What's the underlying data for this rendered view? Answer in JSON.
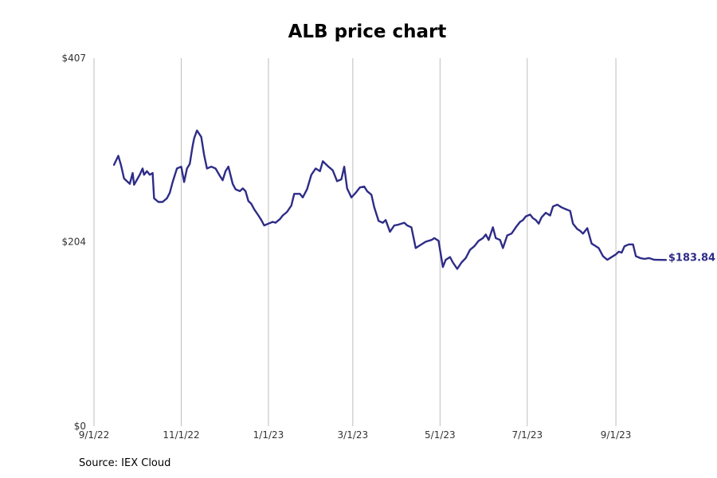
{
  "chart_data": {
    "type": "line",
    "title": "ALB price chart",
    "source": "Source: IEX Cloud",
    "xlabel": "",
    "ylabel": "",
    "x_range": [
      "2022-09-01",
      "2023-10-25"
    ],
    "ylim": [
      0,
      407
    ],
    "y_ticks": [
      {
        "value": 0,
        "label": "$0"
      },
      {
        "value": 204,
        "label": "$204"
      },
      {
        "value": 407,
        "label": "$407"
      }
    ],
    "x_ticks": [
      {
        "value": "2022-09-01",
        "label": "9/1/22"
      },
      {
        "value": "2022-11-01",
        "label": "11/1/22"
      },
      {
        "value": "2023-01-01",
        "label": "1/1/23"
      },
      {
        "value": "2023-03-01",
        "label": "3/1/23"
      },
      {
        "value": "2023-05-01",
        "label": "5/1/23"
      },
      {
        "value": "2023-07-01",
        "label": "7/1/23"
      },
      {
        "value": "2023-09-01",
        "label": "9/1/23"
      }
    ],
    "grid": "vertical",
    "color": "#2e2c87",
    "last_value_label": "$183.84",
    "series": [
      {
        "points": [
          [
            "2022-09-15",
            289
          ],
          [
            "2022-09-18",
            299
          ],
          [
            "2022-09-20",
            288
          ],
          [
            "2022-09-22",
            274
          ],
          [
            "2022-09-26",
            268
          ],
          [
            "2022-09-28",
            280
          ],
          [
            "2022-09-29",
            267
          ],
          [
            "2022-10-03",
            278
          ],
          [
            "2022-10-05",
            285
          ],
          [
            "2022-10-06",
            278
          ],
          [
            "2022-10-08",
            282
          ],
          [
            "2022-10-10",
            278
          ],
          [
            "2022-10-12",
            280
          ],
          [
            "2022-10-13",
            252
          ],
          [
            "2022-10-16",
            248
          ],
          [
            "2022-10-19",
            248
          ],
          [
            "2022-10-22",
            252
          ],
          [
            "2022-10-24",
            258
          ],
          [
            "2022-10-26",
            270
          ],
          [
            "2022-10-29",
            285
          ],
          [
            "2022-11-01",
            287
          ],
          [
            "2022-11-03",
            270
          ],
          [
            "2022-11-05",
            285
          ],
          [
            "2022-11-07",
            290
          ],
          [
            "2022-11-09",
            310
          ],
          [
            "2022-11-10",
            318
          ],
          [
            "2022-11-12",
            327
          ],
          [
            "2022-11-15",
            320
          ],
          [
            "2022-11-17",
            300
          ],
          [
            "2022-11-19",
            285
          ],
          [
            "2022-11-22",
            287
          ],
          [
            "2022-11-25",
            285
          ],
          [
            "2022-11-28",
            277
          ],
          [
            "2022-11-30",
            272
          ],
          [
            "2022-12-02",
            282
          ],
          [
            "2022-12-04",
            287
          ],
          [
            "2022-12-07",
            268
          ],
          [
            "2022-12-09",
            262
          ],
          [
            "2022-12-12",
            260
          ],
          [
            "2022-12-14",
            263
          ],
          [
            "2022-12-16",
            260
          ],
          [
            "2022-12-18",
            249
          ],
          [
            "2022-12-20",
            246
          ],
          [
            "2022-12-22",
            240
          ],
          [
            "2022-12-25",
            233
          ],
          [
            "2022-12-27",
            228
          ],
          [
            "2022-12-29",
            222
          ],
          [
            "2023-01-01",
            224
          ],
          [
            "2023-01-04",
            226
          ],
          [
            "2023-01-06",
            225
          ],
          [
            "2023-01-09",
            229
          ],
          [
            "2023-01-11",
            233
          ],
          [
            "2023-01-14",
            237
          ],
          [
            "2023-01-17",
            244
          ],
          [
            "2023-01-19",
            257
          ],
          [
            "2023-01-23",
            257
          ],
          [
            "2023-01-25",
            253
          ],
          [
            "2023-01-28",
            262
          ],
          [
            "2023-01-31",
            278
          ],
          [
            "2023-02-03",
            285
          ],
          [
            "2023-02-06",
            282
          ],
          [
            "2023-02-08",
            293
          ],
          [
            "2023-02-12",
            287
          ],
          [
            "2023-02-15",
            283
          ],
          [
            "2023-02-18",
            271
          ],
          [
            "2023-02-21",
            273
          ],
          [
            "2023-02-23",
            287
          ],
          [
            "2023-02-25",
            263
          ],
          [
            "2023-02-28",
            253
          ],
          [
            "2023-03-03",
            258
          ],
          [
            "2023-03-06",
            264
          ],
          [
            "2023-03-09",
            265
          ],
          [
            "2023-03-11",
            260
          ],
          [
            "2023-03-14",
            256
          ],
          [
            "2023-03-16",
            242
          ],
          [
            "2023-03-19",
            227
          ],
          [
            "2023-03-22",
            225
          ],
          [
            "2023-03-24",
            228
          ],
          [
            "2023-03-27",
            215
          ],
          [
            "2023-03-30",
            222
          ],
          [
            "2023-04-02",
            223
          ],
          [
            "2023-04-06",
            225
          ],
          [
            "2023-04-08",
            222
          ],
          [
            "2023-04-11",
            220
          ],
          [
            "2023-04-14",
            197
          ],
          [
            "2023-04-18",
            201
          ],
          [
            "2023-04-21",
            204
          ],
          [
            "2023-04-25",
            206
          ],
          [
            "2023-04-27",
            208
          ],
          [
            "2023-04-30",
            205
          ],
          [
            "2023-05-03",
            176
          ],
          [
            "2023-05-05",
            184
          ],
          [
            "2023-05-08",
            187
          ],
          [
            "2023-05-10",
            181
          ],
          [
            "2023-05-13",
            174
          ],
          [
            "2023-05-16",
            181
          ],
          [
            "2023-05-19",
            186
          ],
          [
            "2023-05-22",
            195
          ],
          [
            "2023-05-25",
            199
          ],
          [
            "2023-05-28",
            205
          ],
          [
            "2023-05-31",
            208
          ],
          [
            "2023-06-02",
            212
          ],
          [
            "2023-06-04",
            206
          ],
          [
            "2023-06-07",
            220
          ],
          [
            "2023-06-09",
            208
          ],
          [
            "2023-06-12",
            206
          ],
          [
            "2023-06-14",
            197
          ],
          [
            "2023-06-17",
            211
          ],
          [
            "2023-06-20",
            213
          ],
          [
            "2023-06-23",
            220
          ],
          [
            "2023-06-26",
            226
          ],
          [
            "2023-06-28",
            228
          ],
          [
            "2023-06-30",
            232
          ],
          [
            "2023-07-03",
            234
          ],
          [
            "2023-07-05",
            230
          ],
          [
            "2023-07-07",
            228
          ],
          [
            "2023-07-09",
            224
          ],
          [
            "2023-07-11",
            231
          ],
          [
            "2023-07-14",
            236
          ],
          [
            "2023-07-17",
            233
          ],
          [
            "2023-07-19",
            243
          ],
          [
            "2023-07-22",
            245
          ],
          [
            "2023-07-25",
            242
          ],
          [
            "2023-07-28",
            240
          ],
          [
            "2023-07-31",
            238
          ],
          [
            "2023-08-02",
            224
          ],
          [
            "2023-08-05",
            218
          ],
          [
            "2023-08-07",
            216
          ],
          [
            "2023-08-09",
            213
          ],
          [
            "2023-08-12",
            219
          ],
          [
            "2023-08-15",
            202
          ],
          [
            "2023-08-18",
            199
          ],
          [
            "2023-08-20",
            197
          ],
          [
            "2023-08-23",
            188
          ],
          [
            "2023-08-26",
            184
          ],
          [
            "2023-08-29",
            187
          ],
          [
            "2023-09-01",
            190
          ],
          [
            "2023-09-03",
            193
          ],
          [
            "2023-09-05",
            192
          ],
          [
            "2023-09-07",
            199
          ],
          [
            "2023-09-10",
            201
          ],
          [
            "2023-09-13",
            201
          ],
          [
            "2023-09-15",
            188
          ],
          [
            "2023-09-18",
            186
          ],
          [
            "2023-09-21",
            185
          ],
          [
            "2023-09-24",
            186
          ],
          [
            "2023-09-28",
            184
          ],
          [
            "2023-10-06",
            183.84
          ]
        ]
      }
    ]
  }
}
